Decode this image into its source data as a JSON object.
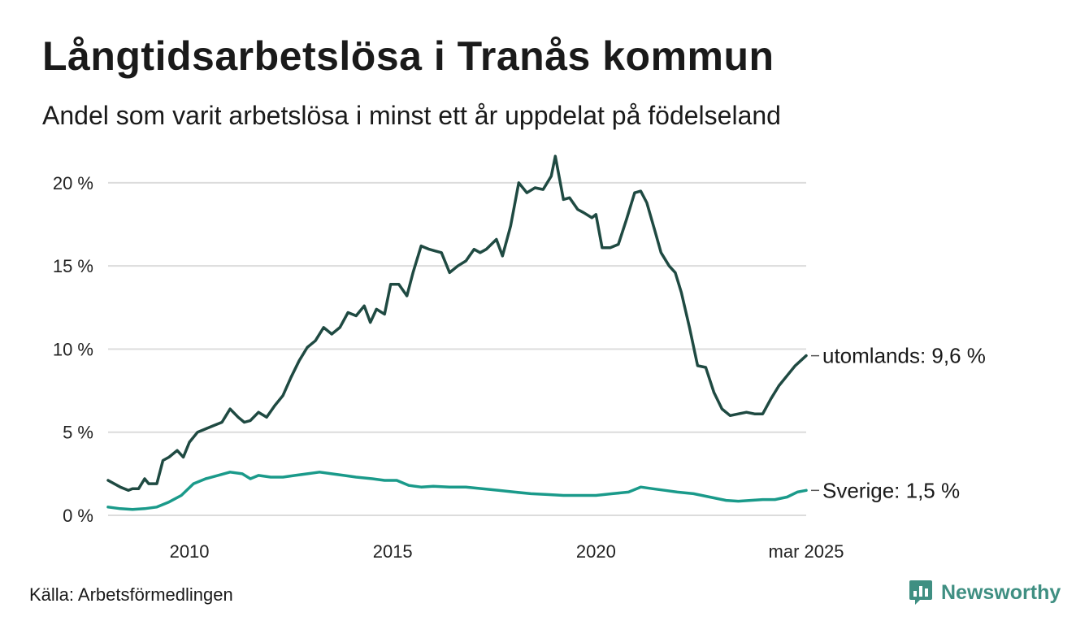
{
  "header": {
    "title": "Långtidsarbetslösa i Tranås kommun",
    "subtitle": "Andel som varit arbetslösa i minst ett år uppdelat på födelseland"
  },
  "footer": {
    "source": "Källa: Arbetsförmedlingen",
    "brand": "Newsworthy",
    "brand_icon": "bar-chart-logo-icon"
  },
  "colors": {
    "utomlands": "#1f4a42",
    "sverige": "#1a9a8a",
    "grid": "#dcdcdc",
    "brand": "#3f8f82"
  },
  "chart_data": {
    "type": "line",
    "x_unit": "year (decimal)",
    "y_unit": "%",
    "ylim": [
      0,
      22
    ],
    "xlim": [
      2008.0,
      2025.17
    ],
    "yticks": [
      {
        "value": 0,
        "label": "0 %"
      },
      {
        "value": 5,
        "label": "5 %"
      },
      {
        "value": 10,
        "label": "10 %"
      },
      {
        "value": 15,
        "label": "15 %"
      },
      {
        "value": 20,
        "label": "20 %"
      }
    ],
    "xticks": [
      {
        "value": 2010,
        "label": "2010"
      },
      {
        "value": 2015,
        "label": "2015"
      },
      {
        "value": 2020,
        "label": "2020"
      },
      {
        "value": 2025.17,
        "label": "mar 2025"
      }
    ],
    "grid": "horizontal",
    "series": [
      {
        "name": "utomlands",
        "end_label": "utomlands: 9,6 %",
        "x": [
          2008.0,
          2008.3,
          2008.5,
          2008.6,
          2008.75,
          2008.9,
          2009.0,
          2009.2,
          2009.35,
          2009.5,
          2009.7,
          2009.85,
          2010.0,
          2010.2,
          2010.4,
          2010.6,
          2010.8,
          2011.0,
          2011.2,
          2011.35,
          2011.5,
          2011.7,
          2011.9,
          2012.1,
          2012.3,
          2012.5,
          2012.7,
          2012.9,
          2013.1,
          2013.3,
          2013.5,
          2013.7,
          2013.9,
          2014.1,
          2014.3,
          2014.45,
          2014.6,
          2014.8,
          2014.95,
          2015.15,
          2015.35,
          2015.5,
          2015.7,
          2015.9,
          2016.05,
          2016.2,
          2016.4,
          2016.6,
          2016.8,
          2017.0,
          2017.15,
          2017.3,
          2017.55,
          2017.7,
          2017.9,
          2018.1,
          2018.3,
          2018.5,
          2018.7,
          2018.9,
          2019.0,
          2019.2,
          2019.35,
          2019.55,
          2019.7,
          2019.9,
          2020.0,
          2020.15,
          2020.35,
          2020.55,
          2020.75,
          2020.95,
          2021.1,
          2021.25,
          2021.45,
          2021.6,
          2021.8,
          2021.95,
          2022.1,
          2022.3,
          2022.5,
          2022.7,
          2022.9,
          2023.1,
          2023.3,
          2023.5,
          2023.7,
          2023.9,
          2024.1,
          2024.3,
          2024.5,
          2024.7,
          2024.9,
          2025.17
        ],
        "y": [
          2.1,
          1.7,
          1.5,
          1.6,
          1.6,
          2.2,
          1.9,
          1.9,
          3.3,
          3.5,
          3.9,
          3.5,
          4.4,
          5.0,
          5.2,
          5.4,
          5.6,
          6.4,
          5.9,
          5.6,
          5.7,
          6.2,
          5.9,
          6.6,
          7.2,
          8.3,
          9.3,
          10.1,
          10.5,
          11.3,
          10.9,
          11.3,
          12.2,
          12.0,
          12.6,
          11.6,
          12.4,
          12.1,
          13.9,
          13.9,
          13.2,
          14.6,
          16.2,
          16.0,
          15.9,
          15.8,
          14.6,
          15.0,
          15.3,
          16.0,
          15.8,
          16.0,
          16.6,
          15.6,
          17.4,
          20.0,
          19.4,
          19.7,
          19.6,
          20.4,
          21.6,
          19.0,
          19.1,
          18.4,
          18.2,
          17.9,
          18.1,
          16.1,
          16.1,
          16.3,
          17.8,
          19.4,
          19.5,
          18.8,
          17.1,
          15.8,
          15.0,
          14.6,
          13.4,
          11.3,
          9.0,
          8.9,
          7.4,
          6.4,
          6.0,
          6.1,
          6.2,
          6.1,
          6.1,
          7.0,
          7.8,
          8.4,
          9.0,
          9.6
        ]
      },
      {
        "name": "Sverige",
        "end_label": "Sverige: 1,5 %",
        "x": [
          2008.0,
          2008.3,
          2008.6,
          2008.9,
          2009.2,
          2009.5,
          2009.8,
          2010.1,
          2010.4,
          2010.7,
          2011.0,
          2011.3,
          2011.5,
          2011.7,
          2012.0,
          2012.3,
          2012.6,
          2012.9,
          2013.2,
          2013.5,
          2013.8,
          2014.1,
          2014.5,
          2014.8,
          2015.1,
          2015.4,
          2015.7,
          2016.0,
          2016.4,
          2016.8,
          2017.2,
          2017.6,
          2018.0,
          2018.4,
          2018.8,
          2019.2,
          2019.6,
          2020.0,
          2020.4,
          2020.8,
          2021.1,
          2021.4,
          2021.7,
          2022.0,
          2022.4,
          2022.8,
          2023.2,
          2023.5,
          2023.8,
          2024.1,
          2024.4,
          2024.7,
          2024.95,
          2025.17
        ],
        "y": [
          0.5,
          0.4,
          0.35,
          0.4,
          0.5,
          0.8,
          1.2,
          1.9,
          2.2,
          2.4,
          2.6,
          2.5,
          2.2,
          2.4,
          2.3,
          2.3,
          2.4,
          2.5,
          2.6,
          2.5,
          2.4,
          2.3,
          2.2,
          2.1,
          2.1,
          1.8,
          1.7,
          1.75,
          1.7,
          1.7,
          1.6,
          1.5,
          1.4,
          1.3,
          1.25,
          1.2,
          1.2,
          1.2,
          1.3,
          1.4,
          1.7,
          1.6,
          1.5,
          1.4,
          1.3,
          1.1,
          0.9,
          0.85,
          0.9,
          0.95,
          0.95,
          1.1,
          1.4,
          1.5
        ]
      }
    ]
  }
}
